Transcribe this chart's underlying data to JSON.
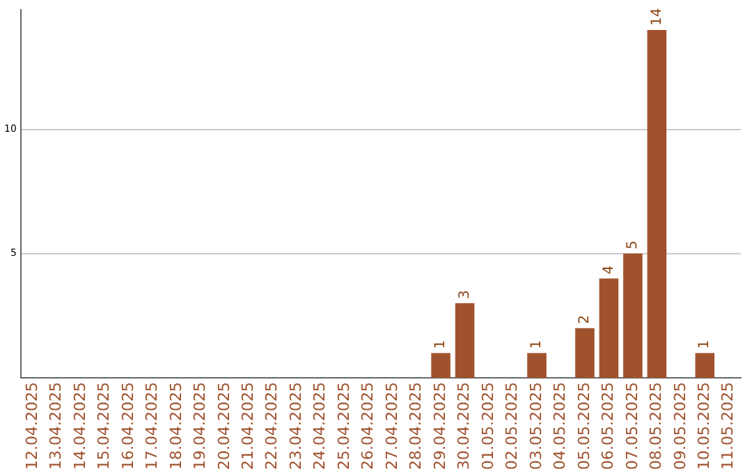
{
  "chart_data": {
    "type": "bar",
    "categories": [
      "12.04.2025",
      "13.04.2025",
      "14.04.2025",
      "15.04.2025",
      "16.04.2025",
      "17.04.2025",
      "18.04.2025",
      "19.04.2025",
      "20.04.2025",
      "21.04.2025",
      "22.04.2025",
      "23.04.2025",
      "24.04.2025",
      "25.04.2025",
      "26.04.2025",
      "27.04.2025",
      "28.04.2025",
      "29.04.2025",
      "30.04.2025",
      "01.05.2025",
      "02.05.2025",
      "03.05.2025",
      "04.05.2025",
      "05.05.2025",
      "06.05.2025",
      "07.05.2025",
      "08.05.2025",
      "09.05.2025",
      "10.05.2025",
      "11.05.2025"
    ],
    "values": [
      0,
      0,
      0,
      0,
      0,
      0,
      0,
      0,
      0,
      0,
      0,
      0,
      0,
      0,
      0,
      0,
      0,
      1,
      3,
      0,
      0,
      1,
      0,
      2,
      4,
      5,
      14,
      0,
      1,
      0
    ],
    "value_labels": [
      null,
      null,
      null,
      null,
      null,
      null,
      null,
      null,
      null,
      null,
      null,
      null,
      null,
      null,
      null,
      null,
      null,
      "1",
      "3",
      null,
      null,
      "1",
      null,
      "2",
      "4",
      "5",
      "14",
      null,
      "1",
      null
    ],
    "color": "#a0522d",
    "ylim": [
      0,
      14.8
    ],
    "yticks": [
      5,
      10
    ],
    "grid": "y"
  }
}
